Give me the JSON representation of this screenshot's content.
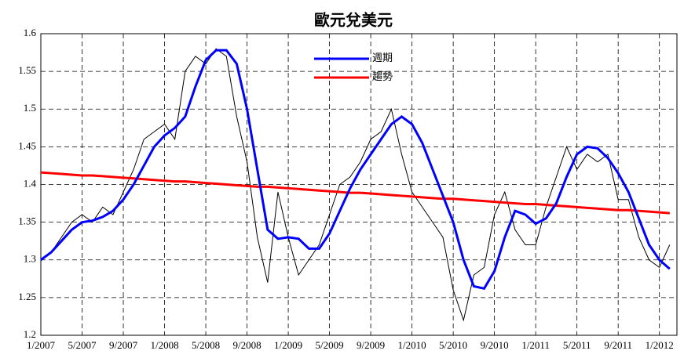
{
  "chart_data": {
    "type": "line",
    "title": "歐元兌美元",
    "x": [
      "1/2007",
      "2/2007",
      "3/2007",
      "4/2007",
      "5/2007",
      "6/2007",
      "7/2007",
      "8/2007",
      "9/2007",
      "10/2007",
      "11/2007",
      "12/2007",
      "1/2008",
      "2/2008",
      "3/2008",
      "4/2008",
      "5/2008",
      "6/2008",
      "7/2008",
      "8/2008",
      "9/2008",
      "10/2008",
      "11/2008",
      "12/2008",
      "1/2009",
      "2/2009",
      "3/2009",
      "4/2009",
      "5/2009",
      "6/2009",
      "7/2009",
      "8/2009",
      "9/2009",
      "10/2009",
      "11/2009",
      "12/2009",
      "1/2010",
      "2/2010",
      "3/2010",
      "4/2010",
      "5/2010",
      "6/2010",
      "7/2010",
      "8/2010",
      "9/2010",
      "10/2010",
      "11/2010",
      "12/2010",
      "1/2011",
      "2/2011",
      "3/2011",
      "4/2011",
      "5/2011",
      "6/2011",
      "7/2011",
      "8/2011",
      "9/2011",
      "10/2011",
      "11/2011",
      "12/2011",
      "1/2012",
      "2/2012"
    ],
    "xticks": [
      "1/2007",
      "5/2007",
      "9/2007",
      "1/2008",
      "5/2008",
      "9/2008",
      "1/2009",
      "5/2009",
      "9/2009",
      "1/2010",
      "5/2010",
      "9/2010",
      "1/2011",
      "5/2011",
      "9/2011",
      "1/2012"
    ],
    "series": [
      {
        "color": "#000000",
        "values": [
          1.3,
          1.31,
          1.33,
          1.35,
          1.36,
          1.35,
          1.37,
          1.36,
          1.39,
          1.42,
          1.46,
          1.47,
          1.48,
          1.46,
          1.55,
          1.57,
          1.56,
          1.58,
          1.57,
          1.49,
          1.43,
          1.33,
          1.27,
          1.39,
          1.33,
          1.28,
          1.3,
          1.32,
          1.36,
          1.4,
          1.41,
          1.43,
          1.46,
          1.47,
          1.5,
          1.44,
          1.39,
          1.37,
          1.35,
          1.33,
          1.26,
          1.22,
          1.28,
          1.29,
          1.36,
          1.39,
          1.34,
          1.32,
          1.32,
          1.37,
          1.41,
          1.45,
          1.42,
          1.44,
          1.43,
          1.44,
          1.38,
          1.38,
          1.33,
          1.3,
          1.29,
          1.32
        ]
      },
      {
        "name": "趨勢",
        "color": "#ff0000",
        "values": [
          1.416,
          1.415,
          1.414,
          1.413,
          1.412,
          1.412,
          1.411,
          1.41,
          1.409,
          1.408,
          1.407,
          1.406,
          1.405,
          1.404,
          1.404,
          1.403,
          1.402,
          1.401,
          1.4,
          1.399,
          1.398,
          1.397,
          1.397,
          1.396,
          1.395,
          1.394,
          1.393,
          1.392,
          1.391,
          1.39,
          1.389,
          1.389,
          1.388,
          1.387,
          1.386,
          1.385,
          1.384,
          1.383,
          1.382,
          1.381,
          1.381,
          1.38,
          1.379,
          1.378,
          1.377,
          1.376,
          1.375,
          1.374,
          1.374,
          1.373,
          1.372,
          1.371,
          1.37,
          1.369,
          1.368,
          1.367,
          1.366,
          1.366,
          1.365,
          1.364,
          1.363,
          1.362
        ]
      },
      {
        "name": "週期",
        "color": "#0000ff",
        "values": [
          1.3,
          1.31,
          1.325,
          1.34,
          1.35,
          1.352,
          1.357,
          1.365,
          1.38,
          1.4,
          1.425,
          1.45,
          1.465,
          1.475,
          1.49,
          1.53,
          1.565,
          1.578,
          1.578,
          1.56,
          1.5,
          1.42,
          1.34,
          1.328,
          1.33,
          1.328,
          1.315,
          1.315,
          1.335,
          1.365,
          1.395,
          1.42,
          1.44,
          1.46,
          1.48,
          1.49,
          1.48,
          1.455,
          1.42,
          1.385,
          1.35,
          1.3,
          1.265,
          1.262,
          1.285,
          1.33,
          1.365,
          1.36,
          1.348,
          1.355,
          1.375,
          1.41,
          1.44,
          1.45,
          1.448,
          1.435,
          1.415,
          1.39,
          1.355,
          1.32,
          1.3,
          1.288
        ]
      }
    ],
    "ylim": [
      1.2,
      1.6
    ],
    "yticks": [
      1.2,
      1.25,
      1.3,
      1.35,
      1.4,
      1.45,
      1.5,
      1.55,
      1.6
    ],
    "grid": true
  }
}
